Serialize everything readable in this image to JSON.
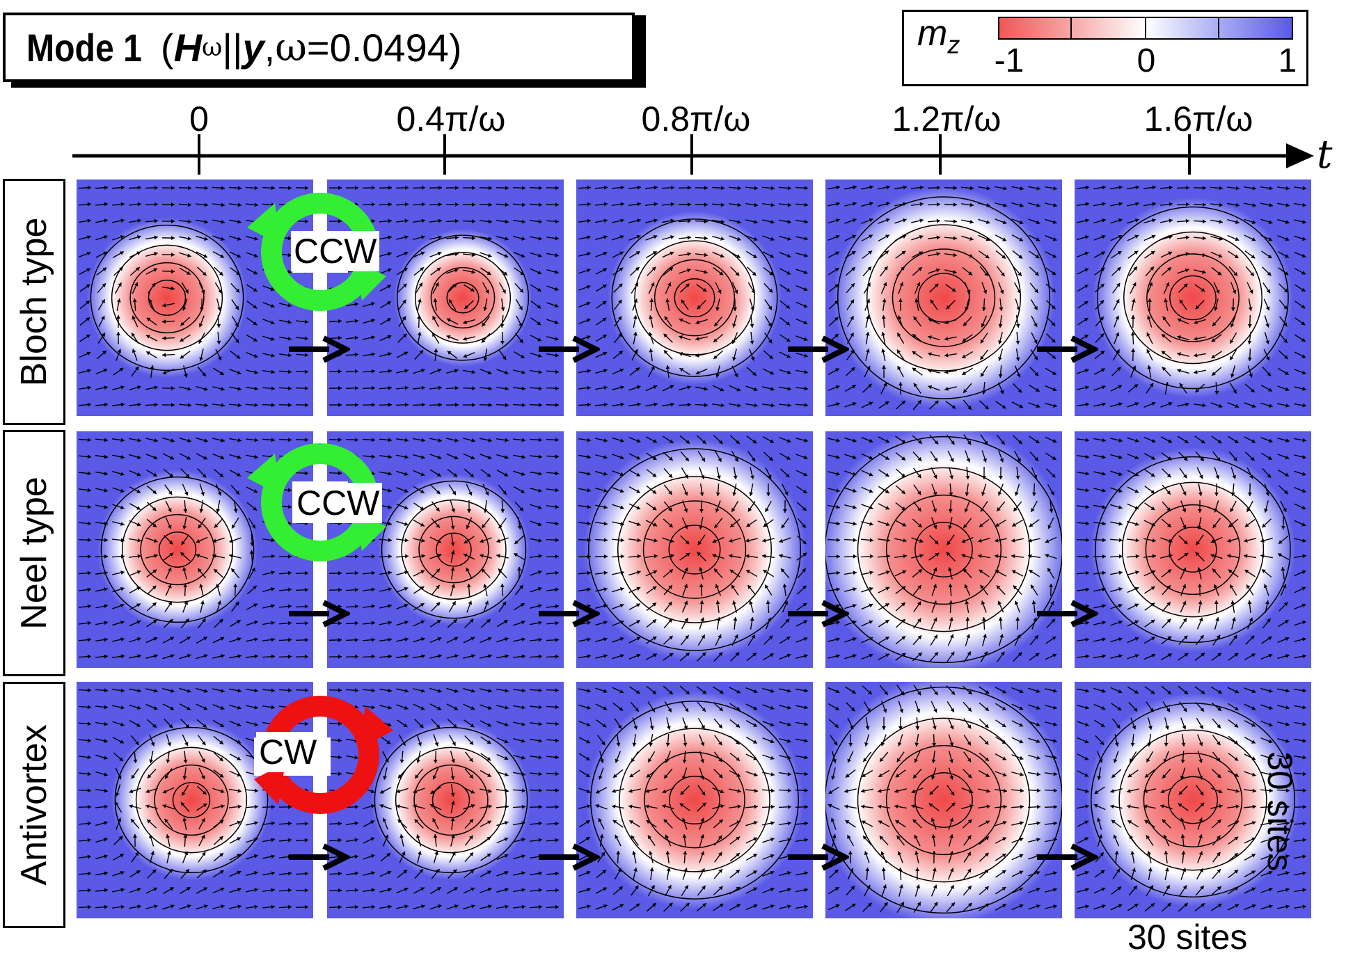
{
  "title": {
    "mode": "Mode 1",
    "open": " (",
    "h_symbol": "H",
    "h_sup": "ω",
    "parallel": "||",
    "axis": "y",
    "sep": ", ",
    "omega_symbol": "ω",
    "omega_value": "=0.0494)"
  },
  "colorbar": {
    "label": "m",
    "label_sub": "z",
    "ticks": [
      "-1",
      "0",
      "1"
    ],
    "colors": {
      "negative": "#f25757",
      "zero": "#ffffff",
      "positive": "#5a5ae6"
    }
  },
  "time_axis": {
    "label": "t",
    "ticks": [
      "0",
      "0.4π/ω",
      "0.8π/ω",
      "1.2π/ω",
      "1.6π/ω"
    ]
  },
  "rows": [
    {
      "label": "Bloch type",
      "rotation": "CCW",
      "rotation_color": "#33ee33"
    },
    {
      "label": "Neel type",
      "rotation": "CCW",
      "rotation_color": "#33ee33"
    },
    {
      "label": "Antivortex",
      "rotation": "CW",
      "rotation_color": "#ee1111"
    }
  ],
  "size_labels": {
    "vertical": "30 sites",
    "horizontal": "30 sites"
  },
  "colors": {
    "arrow": "#000000",
    "panel_bg": "#5a5ae6",
    "core": "#f25757"
  }
}
